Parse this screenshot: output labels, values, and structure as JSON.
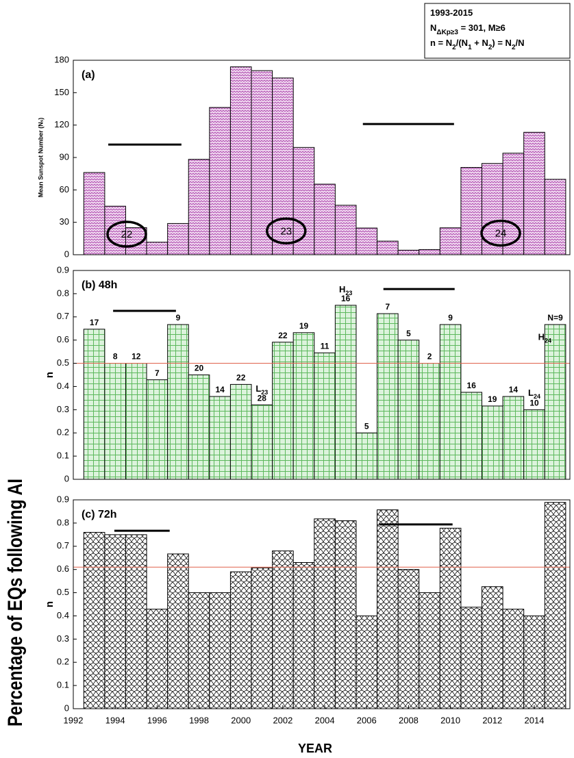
{
  "info_box": [
    [
      {
        "text": "1993-2015"
      }
    ],
    [
      {
        "text": "N"
      },
      {
        "sub": "ΔKp≥3"
      },
      {
        "text": " = 301, M≥6"
      }
    ],
    [
      {
        "text": "n = N"
      },
      {
        "sub": "2"
      },
      {
        "text": "/(N"
      },
      {
        "sub": "1"
      },
      {
        "text": " + N"
      },
      {
        "sub": "2"
      },
      {
        "text": ") = N"
      },
      {
        "sub": "2"
      },
      {
        "text": "/N"
      }
    ]
  ],
  "side_label": "Percentage of EQs following AI",
  "chart_data": [
    {
      "type": "bar",
      "panel_label": "(a)",
      "ylabel": "Mean Sunspot Number (Nₛ)",
      "x": [
        1993,
        1994,
        1995,
        1996,
        1997,
        1998,
        1999,
        2000,
        2001,
        2002,
        2003,
        2004,
        2005,
        2006,
        2007,
        2008,
        2009,
        2010,
        2011,
        2012,
        2013,
        2014,
        2015
      ],
      "values": [
        76.1,
        44.9,
        25.1,
        11.6,
        28.9,
        88.3,
        136.3,
        173.9,
        170.4,
        163.6,
        99.3,
        65.3,
        45.8,
        24.7,
        12.6,
        4.2,
        4.8,
        24.9,
        80.8,
        84.5,
        94.0,
        113.3,
        69.8
      ],
      "color": "#b050b0",
      "background": "#f3ddf3",
      "pattern": "zigzag",
      "xlim": [
        1992,
        2015.7
      ],
      "ylim": [
        0,
        180
      ],
      "yticks": [
        0,
        30,
        60,
        90,
        120,
        150,
        180
      ],
      "segments": [
        {
          "x": [
            1993.67,
            1997.16
          ],
          "y": 102
        },
        {
          "x": [
            2005.82,
            2010.17
          ],
          "y": 121
        }
      ],
      "cycles": [
        {
          "text": "22",
          "x": 1994.55,
          "y": 19
        },
        {
          "text": "23",
          "x": 2002.16,
          "y": 22
        },
        {
          "text": "24",
          "x": 2012.4,
          "y": 20
        }
      ]
    },
    {
      "type": "bar",
      "panel_label": "(b) 48h",
      "ylabel": "n",
      "x": [
        1993,
        1994,
        1995,
        1996,
        1997,
        1998,
        1999,
        2000,
        2001,
        2002,
        2003,
        2004,
        2005,
        2006,
        2007,
        2008,
        2009,
        2010,
        2011,
        2012,
        2013,
        2014,
        2015
      ],
      "values": [
        0.647,
        0.5,
        0.5,
        0.429,
        0.667,
        0.45,
        0.357,
        0.409,
        0.321,
        0.591,
        0.632,
        0.545,
        0.75,
        0.2,
        0.714,
        0.6,
        0.5,
        0.667,
        0.375,
        0.316,
        0.357,
        0.3,
        0.667
      ],
      "bar_labels": [
        "17",
        "8",
        "12",
        "7",
        "9",
        "20",
        "14",
        "22",
        "28",
        "22",
        "19",
        "11",
        "16",
        "5",
        "7",
        "5",
        "2",
        "9",
        "16",
        "19",
        "14",
        "10",
        "N=9"
      ],
      "color": "#5cb85c",
      "background": "#dcf3dc",
      "pattern": "grid",
      "xlim": [
        1992,
        2015.7
      ],
      "ylim": [
        0,
        0.9
      ],
      "yticks": [
        0,
        0.1,
        0.2,
        0.3,
        0.4,
        0.5,
        0.6,
        0.7,
        0.8,
        0.9
      ],
      "ref_line": 0.5,
      "ref_line_color": "#e0604a",
      "segments": [
        {
          "x": [
            1993.9,
            1996.9
          ],
          "y": 0.726
        },
        {
          "x": [
            2006.8,
            2010.2
          ],
          "y": 0.82
        }
      ],
      "annotations": [
        {
          "base": "H",
          "sub": "23",
          "x": 2005,
          "y": 0.814
        },
        {
          "base": "L",
          "sub": "23",
          "x": 2001,
          "y": 0.386
        },
        {
          "base": "L",
          "sub": "24",
          "x": 2014,
          "y": 0.369
        },
        {
          "base": "H",
          "sub": "24",
          "x": 2014.5,
          "y": 0.61
        }
      ]
    },
    {
      "type": "bar",
      "panel_label": "(c) 72h",
      "ylabel": "n",
      "xlabel": "YEAR",
      "x": [
        1993,
        1994,
        1995,
        1996,
        1997,
        1998,
        1999,
        2000,
        2001,
        2002,
        2003,
        2004,
        2005,
        2006,
        2007,
        2008,
        2009,
        2010,
        2011,
        2012,
        2013,
        2014,
        2015
      ],
      "values": [
        0.76,
        0.75,
        0.75,
        0.429,
        0.667,
        0.5,
        0.5,
        0.59,
        0.607,
        0.68,
        0.63,
        0.818,
        0.81,
        0.4,
        0.857,
        0.6,
        0.5,
        0.778,
        0.4375,
        0.526,
        0.429,
        0.4,
        0.889
      ],
      "color": "#000000",
      "background": "#ffffff",
      "pattern": "scallop",
      "xlim": [
        1992,
        2015.7
      ],
      "ylim": [
        0,
        0.9
      ],
      "yticks": [
        0,
        0.1,
        0.2,
        0.3,
        0.4,
        0.5,
        0.6,
        0.7,
        0.8,
        0.9
      ],
      "xticks": [
        1992,
        1994,
        1996,
        1998,
        2000,
        2002,
        2004,
        2006,
        2008,
        2010,
        2012,
        2014
      ],
      "ref_line": 0.61,
      "ref_line_color": "#e0604a",
      "segments": [
        {
          "x": [
            1993.96,
            1996.6
          ],
          "y": 0.767
        },
        {
          "x": [
            2006.6,
            2010.1
          ],
          "y": 0.794
        }
      ]
    }
  ]
}
